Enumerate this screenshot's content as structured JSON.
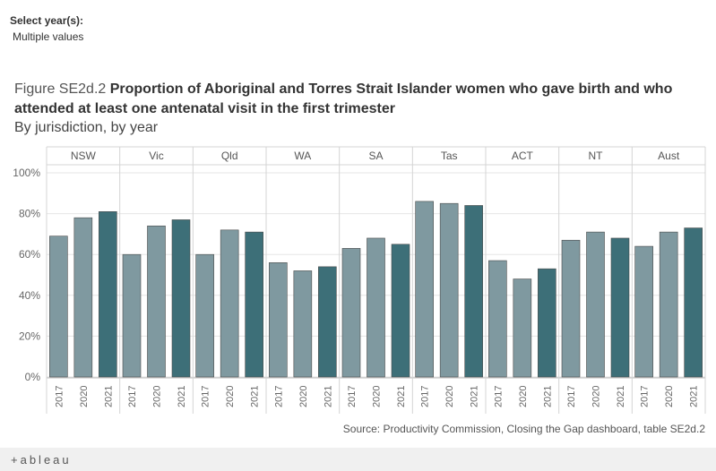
{
  "filter": {
    "label": "Select year(s):",
    "value": "Multiple values"
  },
  "title": {
    "prefix": "Figure SE2d.2",
    "main": "Proportion of Aboriginal and Torres Strait Islander women who gave birth and who attended at least one antenatal visit in the first trimester",
    "subtitle": "By jurisdiction, by year"
  },
  "source": "Source: Productivity Commission, Closing the Gap dashboard, table SE2d.2",
  "logo": "+ableau",
  "colors": {
    "past_year": "#7f99a0",
    "latest_year": "#3d6f78",
    "grid": "#e6e6e6",
    "divider": "#d4d4d4"
  },
  "chart_data": {
    "type": "bar",
    "panels": [
      "NSW",
      "Vic",
      "Qld",
      "WA",
      "SA",
      "Tas",
      "ACT",
      "NT",
      "Aust"
    ],
    "years": [
      "2017",
      "2020",
      "2021"
    ],
    "values": {
      "NSW": [
        69,
        78,
        81
      ],
      "Vic": [
        60,
        74,
        77
      ],
      "Qld": [
        60,
        72,
        71
      ],
      "WA": [
        56,
        52,
        54
      ],
      "SA": [
        63,
        68,
        65
      ],
      "Tas": [
        86,
        85,
        84
      ],
      "ACT": [
        57,
        48,
        53
      ],
      "NT": [
        67,
        71,
        68
      ],
      "Aust": [
        64,
        71,
        73
      ]
    },
    "y_ticks": [
      "100%",
      "80%",
      "60%",
      "40%",
      "20%",
      "0%"
    ],
    "y_tick_values": [
      100,
      80,
      60,
      40,
      20,
      0
    ],
    "ylim": [
      0,
      100
    ],
    "unit": "%",
    "grid": true
  }
}
